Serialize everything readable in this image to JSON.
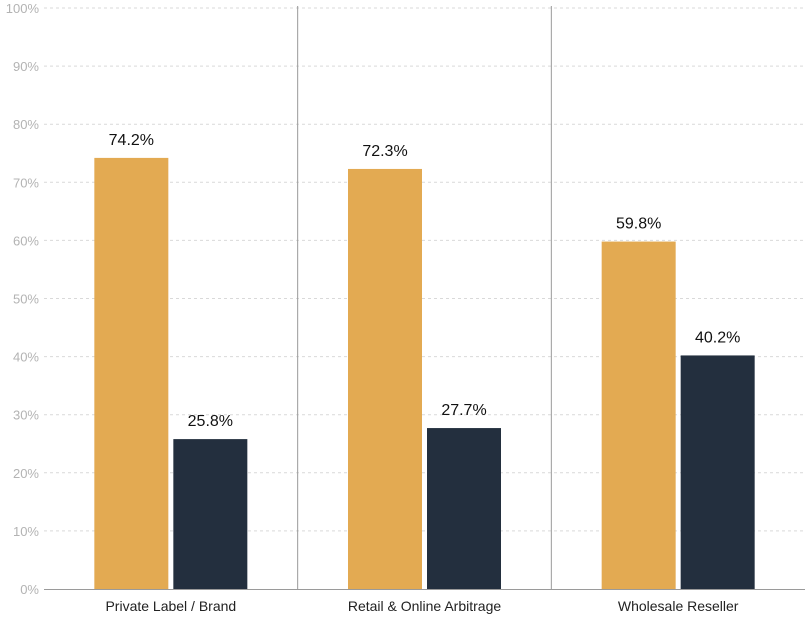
{
  "chart_data": {
    "type": "bar",
    "categories": [
      "Private Label / Brand",
      "Retail & Online Arbitrage",
      "Wholesale Reseller"
    ],
    "series": [
      {
        "values": [
          74.2,
          72.3,
          59.8
        ],
        "labels": [
          "74.2%",
          "72.3%",
          "59.8%"
        ],
        "color": "#e3aa52"
      },
      {
        "values": [
          25.8,
          27.7,
          40.2
        ],
        "labels": [
          "25.8%",
          "27.7%",
          "40.2%"
        ],
        "color": "#232f3e"
      }
    ],
    "ylim": [
      0,
      100
    ],
    "yticks": [
      "0%",
      "10%",
      "20%",
      "30%",
      "40%",
      "50%",
      "60%",
      "70%",
      "80%",
      "90%",
      "100%"
    ],
    "grid": true,
    "legend": "none",
    "xlabel": "",
    "ylabel": "",
    "title": ""
  }
}
